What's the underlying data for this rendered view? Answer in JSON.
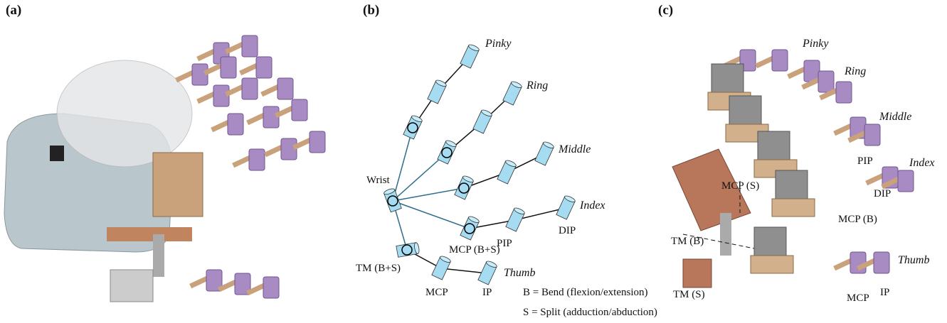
{
  "panel_labels": [
    "(a)",
    "(b)",
    "(c)"
  ],
  "panel_b": {
    "wrist": "Wrist",
    "fingers": [
      "Pinky",
      "Ring",
      "Middle",
      "Index",
      "Thumb"
    ],
    "joint_labels": [
      "MCP (B+S)",
      "PIP",
      "DIP",
      "TM (B+S)",
      "MCP",
      "IP"
    ],
    "legend": [
      "B = Bend (flexion/extension)",
      "S = Split (adduction/abduction)"
    ]
  },
  "panel_c": {
    "fingers": [
      "Pinky",
      "Ring",
      "Middle",
      "Index",
      "Thumb"
    ],
    "joint_labels": [
      "PIP",
      "DIP",
      "MCP (B)",
      "MCP (S)",
      "TM (B)",
      "TM (S)",
      "MCP",
      "IP"
    ]
  }
}
